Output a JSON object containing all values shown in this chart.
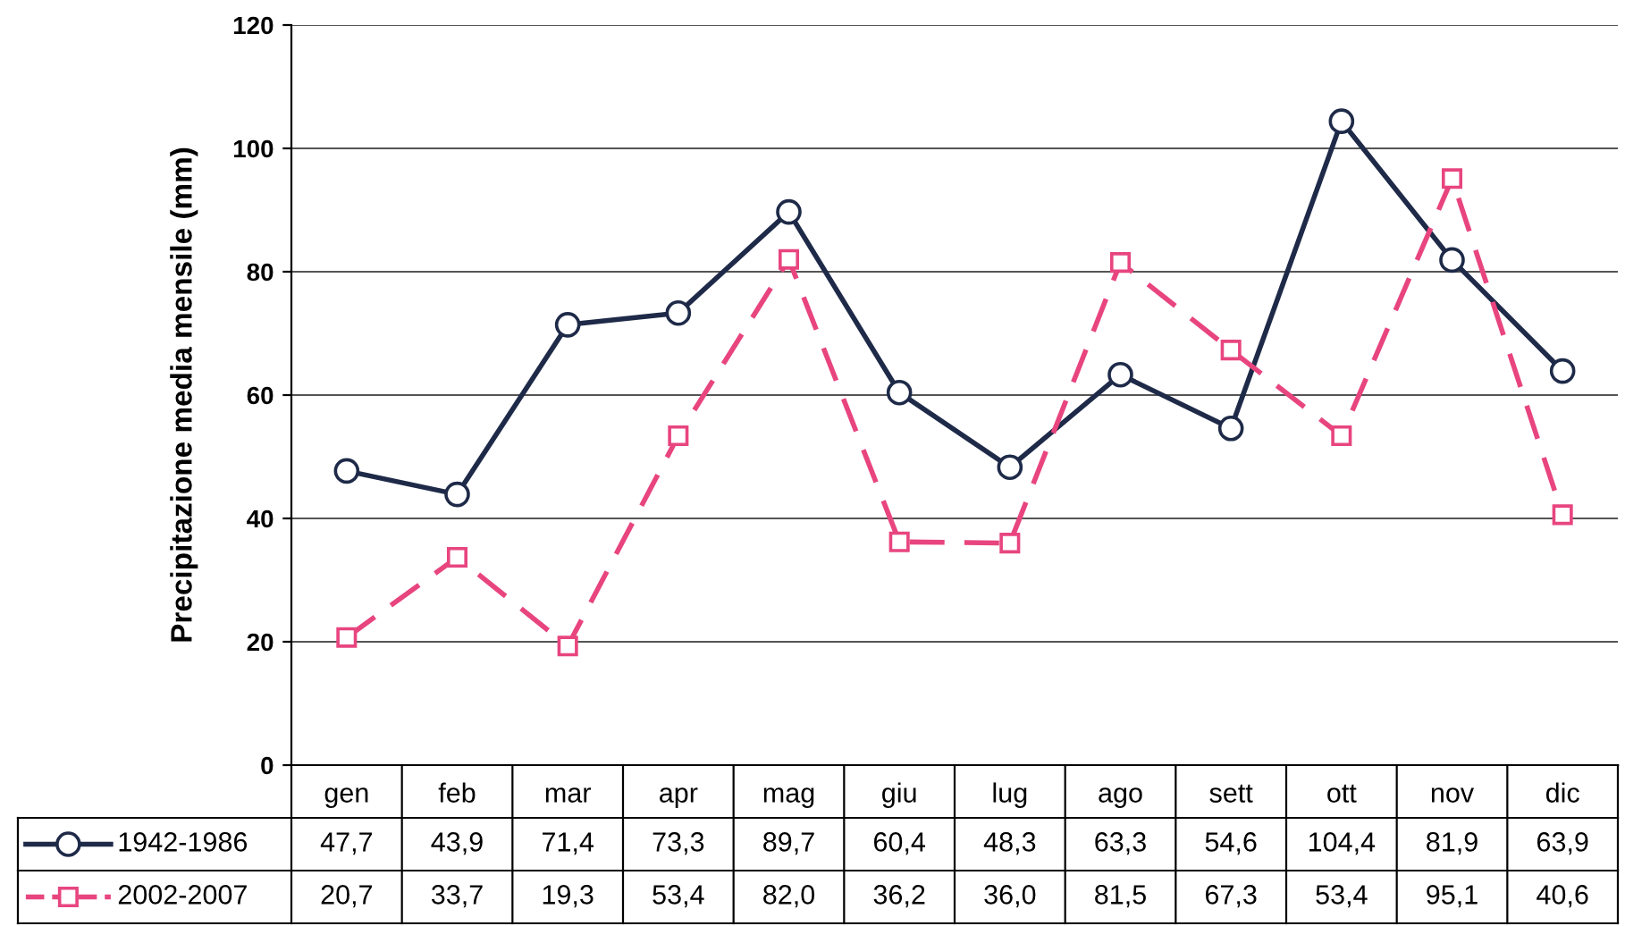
{
  "chart_data": {
    "type": "line",
    "ylabel": "Precipitazione media mensile (mm)",
    "categories": [
      "gen",
      "feb",
      "mar",
      "apr",
      "mag",
      "giu",
      "lug",
      "ago",
      "sett",
      "ott",
      "nov",
      "dic"
    ],
    "series": [
      {
        "name": "1942-1986",
        "color": "#1e2a48",
        "marker": "circle",
        "line_style": "solid",
        "values": [
          47.7,
          43.9,
          71.4,
          73.3,
          89.7,
          60.4,
          48.3,
          63.3,
          54.6,
          104.4,
          81.9,
          63.9
        ],
        "value_labels": [
          "47,7",
          "43,9",
          "71,4",
          "73,3",
          "89,7",
          "60,4",
          "48,3",
          "63,3",
          "54,6",
          "104,4",
          "81,9",
          "63,9"
        ]
      },
      {
        "name": "2002-2007",
        "color": "#e8457f",
        "marker": "square",
        "line_style": "dashed",
        "values": [
          20.7,
          33.7,
          19.3,
          53.4,
          82.0,
          36.2,
          36.0,
          81.5,
          67.3,
          53.4,
          95.1,
          40.6
        ],
        "value_labels": [
          "20,7",
          "33,7",
          "19,3",
          "53,4",
          "82,0",
          "36,2",
          "36,0",
          "81,5",
          "67,3",
          "53,4",
          "95,1",
          "40,6"
        ]
      }
    ],
    "ylim": [
      0,
      120
    ],
    "yticks": [
      0,
      20,
      40,
      60,
      80,
      100,
      120
    ],
    "grid": "y",
    "legend": "bottom"
  }
}
